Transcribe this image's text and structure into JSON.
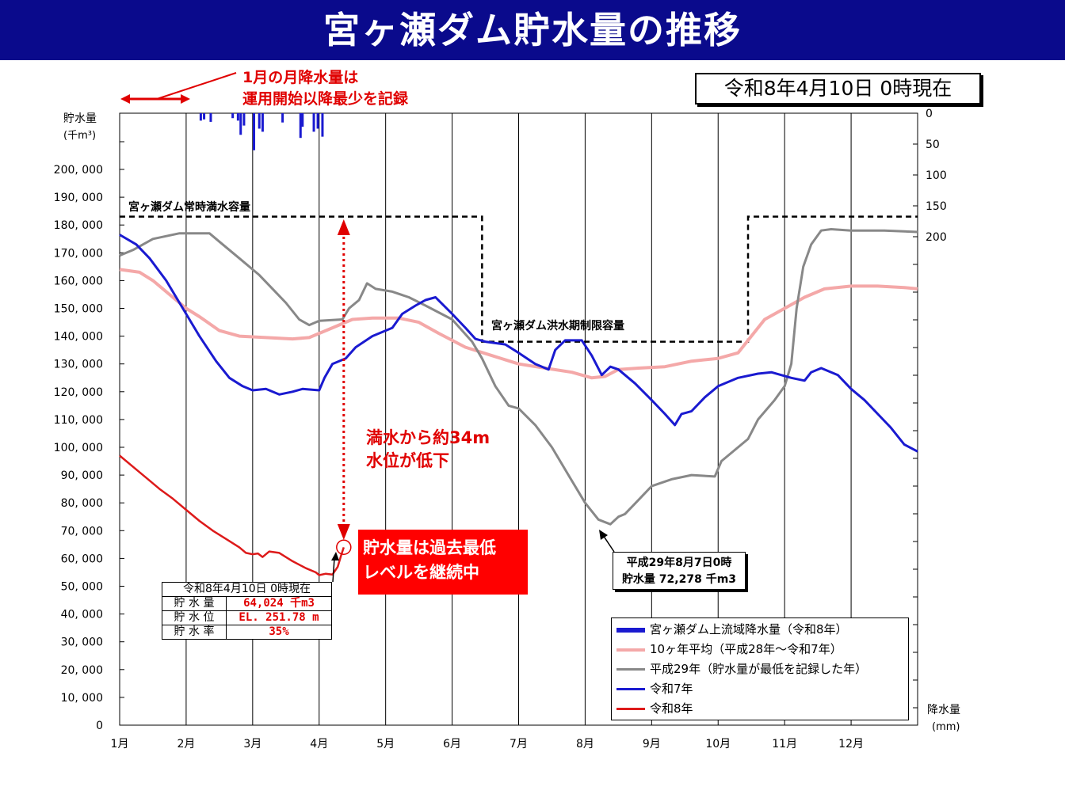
{
  "title": "宮ヶ瀬ダム貯水量の推移",
  "status_time": "令和8年4月10日 0時現在",
  "january_note": {
    "line1": "1月の月降水量は",
    "line2": "運用開始以降最少を記録"
  },
  "drop_note": {
    "line1": "満水から約34m",
    "line2": "水位が低下"
  },
  "record_note": {
    "line1": "貯水量は過去最低",
    "line2": "レベルを継続中"
  },
  "min_note": {
    "line1": "平成29年8月7日0時",
    "line2": "貯水量 72,278 千m3"
  },
  "info_table": {
    "header": "令和8年4月10日 0時現在",
    "rows": [
      {
        "label": "貯 水 量",
        "value": "64,024 千m3"
      },
      {
        "label": "貯 水 位",
        "value": "EL. 251.78 m"
      },
      {
        "label": "貯 水 率",
        "value": "35%"
      }
    ]
  },
  "colors": {
    "title_bg": "#0a0a8c",
    "rain": "#1a1ad0",
    "avg": "#f4a8a8",
    "h29": "#888888",
    "r7": "#1a1ad0",
    "r8": "#dd1a1a",
    "accent_red": "#e00000"
  },
  "chart_data": {
    "type": "line",
    "title": "宮ヶ瀬ダム貯水量の推移",
    "ylabel": "貯水量 (千m³)",
    "y2label": "降水量 (mm)",
    "ylim": [
      0,
      220000
    ],
    "y2lim": [
      0,
      200
    ],
    "yticks": [
      0,
      10000,
      20000,
      30000,
      40000,
      50000,
      60000,
      70000,
      80000,
      90000,
      100000,
      110000,
      120000,
      130000,
      140000,
      150000,
      160000,
      170000,
      180000,
      190000,
      200000
    ],
    "y2ticks": [
      0,
      50,
      100,
      150,
      200
    ],
    "x_tick_labels": [
      "1月",
      "2月",
      "3月",
      "4月",
      "5月",
      "6月",
      "7月",
      "8月",
      "9月",
      "10月",
      "11月",
      "12月"
    ],
    "grid": true,
    "legend_position": "bottom-right",
    "reference_lines": [
      {
        "name": "宮ヶ瀬ダム常時満水容量",
        "value": 183000
      },
      {
        "name": "宮ヶ瀬ダム洪水期制限容量",
        "value": 138000
      }
    ],
    "capacity_steps": [
      [
        0,
        183000
      ],
      [
        5.45,
        183000
      ],
      [
        5.45,
        138000
      ],
      [
        9.45,
        138000
      ],
      [
        9.45,
        183000
      ],
      [
        12,
        183000
      ]
    ],
    "series": [
      {
        "name": "宮ヶ瀬ダム上流域降水量（令和8年）",
        "kind": "rain",
        "points": [
          [
            1.22,
            12
          ],
          [
            1.27,
            10
          ],
          [
            1.37,
            14
          ],
          [
            1.7,
            8
          ],
          [
            1.78,
            12
          ],
          [
            1.82,
            35
          ],
          [
            1.87,
            20
          ],
          [
            2.02,
            60
          ],
          [
            2.1,
            25
          ],
          [
            2.15,
            30
          ],
          [
            2.45,
            15
          ],
          [
            2.72,
            40
          ],
          [
            2.75,
            22
          ],
          [
            2.92,
            30
          ],
          [
            2.98,
            25
          ],
          [
            3.05,
            38
          ]
        ]
      },
      {
        "name": "10ヶ年平均（平成28年～令和7年）",
        "kind": "line",
        "points": [
          [
            0,
            164000
          ],
          [
            0.3,
            163000
          ],
          [
            0.5,
            160000
          ],
          [
            0.8,
            154000
          ],
          [
            1.0,
            150000
          ],
          [
            1.2,
            147000
          ],
          [
            1.5,
            142000
          ],
          [
            1.8,
            140000
          ],
          [
            2.2,
            139500
          ],
          [
            2.6,
            139000
          ],
          [
            2.85,
            139500
          ],
          [
            3.2,
            143000
          ],
          [
            3.5,
            146000
          ],
          [
            3.8,
            146500
          ],
          [
            4.2,
            146500
          ],
          [
            4.5,
            145000
          ],
          [
            4.8,
            141000
          ],
          [
            5.2,
            136000
          ],
          [
            5.6,
            133000
          ],
          [
            6.0,
            130000
          ],
          [
            6.4,
            128500
          ],
          [
            6.8,
            127000
          ],
          [
            7.1,
            125000
          ],
          [
            7.3,
            125500
          ],
          [
            7.5,
            128000
          ],
          [
            7.8,
            128500
          ],
          [
            8.2,
            129000
          ],
          [
            8.6,
            131000
          ],
          [
            9.0,
            132000
          ],
          [
            9.3,
            134000
          ],
          [
            9.5,
            140000
          ],
          [
            9.7,
            146000
          ],
          [
            10.0,
            150000
          ],
          [
            10.3,
            154000
          ],
          [
            10.6,
            157000
          ],
          [
            11.0,
            158000
          ],
          [
            11.4,
            158000
          ],
          [
            11.8,
            157500
          ],
          [
            12.0,
            157000
          ]
        ]
      },
      {
        "name": "平成29年（貯水量が最低を記録した年）",
        "kind": "line",
        "points": [
          [
            0,
            169000
          ],
          [
            0.2,
            171000
          ],
          [
            0.5,
            175000
          ],
          [
            0.9,
            177000
          ],
          [
            1.35,
            177000
          ],
          [
            1.5,
            174000
          ],
          [
            1.8,
            168000
          ],
          [
            2.1,
            162000
          ],
          [
            2.3,
            157000
          ],
          [
            2.5,
            152000
          ],
          [
            2.7,
            146000
          ],
          [
            2.85,
            144000
          ],
          [
            3.0,
            145500
          ],
          [
            3.35,
            146000
          ],
          [
            3.45,
            150000
          ],
          [
            3.6,
            153000
          ],
          [
            3.72,
            159000
          ],
          [
            3.85,
            157000
          ],
          [
            4.1,
            156000
          ],
          [
            4.35,
            154000
          ],
          [
            4.6,
            151000
          ],
          [
            5.0,
            146000
          ],
          [
            5.3,
            138000
          ],
          [
            5.45,
            132000
          ],
          [
            5.65,
            122000
          ],
          [
            5.85,
            115000
          ],
          [
            6.0,
            114000
          ],
          [
            6.25,
            108000
          ],
          [
            6.5,
            100000
          ],
          [
            6.75,
            90000
          ],
          [
            7.0,
            80000
          ],
          [
            7.2,
            74000
          ],
          [
            7.38,
            72300
          ],
          [
            7.5,
            75000
          ],
          [
            7.6,
            76000
          ],
          [
            7.8,
            81000
          ],
          [
            8.0,
            86000
          ],
          [
            8.3,
            88500
          ],
          [
            8.6,
            90000
          ],
          [
            8.95,
            89500
          ],
          [
            9.05,
            95000
          ],
          [
            9.2,
            98000
          ],
          [
            9.45,
            103000
          ],
          [
            9.6,
            110000
          ],
          [
            9.85,
            117000
          ],
          [
            10.0,
            122000
          ],
          [
            10.1,
            130000
          ],
          [
            10.18,
            150000
          ],
          [
            10.28,
            165000
          ],
          [
            10.4,
            173000
          ],
          [
            10.55,
            178000
          ],
          [
            10.7,
            178500
          ],
          [
            11.0,
            178000
          ],
          [
            11.5,
            178000
          ],
          [
            12.0,
            177500
          ]
        ]
      },
      {
        "name": "令和7年",
        "kind": "line",
        "points": [
          [
            0,
            176500
          ],
          [
            0.25,
            173000
          ],
          [
            0.45,
            168000
          ],
          [
            0.7,
            160000
          ],
          [
            0.95,
            150000
          ],
          [
            1.2,
            140000
          ],
          [
            1.45,
            131000
          ],
          [
            1.65,
            125000
          ],
          [
            1.85,
            122000
          ],
          [
            2.0,
            120500
          ],
          [
            2.2,
            121000
          ],
          [
            2.4,
            119000
          ],
          [
            2.6,
            120000
          ],
          [
            2.75,
            121000
          ],
          [
            3.0,
            120500
          ],
          [
            3.08,
            125000
          ],
          [
            3.2,
            130000
          ],
          [
            3.4,
            132000
          ],
          [
            3.55,
            136000
          ],
          [
            3.8,
            140000
          ],
          [
            4.0,
            142000
          ],
          [
            4.1,
            143000
          ],
          [
            4.25,
            148000
          ],
          [
            4.45,
            151000
          ],
          [
            4.6,
            153000
          ],
          [
            4.75,
            154000
          ],
          [
            5.0,
            148000
          ],
          [
            5.2,
            143000
          ],
          [
            5.35,
            139000
          ],
          [
            5.5,
            138000
          ],
          [
            5.8,
            137000
          ],
          [
            6.0,
            134000
          ],
          [
            6.25,
            130000
          ],
          [
            6.45,
            128000
          ],
          [
            6.55,
            135000
          ],
          [
            6.7,
            138500
          ],
          [
            6.95,
            138500
          ],
          [
            7.1,
            133000
          ],
          [
            7.25,
            126000
          ],
          [
            7.38,
            129000
          ],
          [
            7.5,
            128000
          ],
          [
            7.75,
            123000
          ],
          [
            8.0,
            117000
          ],
          [
            8.2,
            112000
          ],
          [
            8.35,
            108000
          ],
          [
            8.45,
            112000
          ],
          [
            8.6,
            113000
          ],
          [
            8.8,
            118000
          ],
          [
            9.0,
            122000
          ],
          [
            9.3,
            125000
          ],
          [
            9.6,
            126500
          ],
          [
            9.8,
            127000
          ],
          [
            10.1,
            125000
          ],
          [
            10.3,
            124000
          ],
          [
            10.4,
            127000
          ],
          [
            10.55,
            128500
          ],
          [
            10.8,
            126000
          ],
          [
            11.0,
            121000
          ],
          [
            11.2,
            117000
          ],
          [
            11.4,
            112000
          ],
          [
            11.6,
            107000
          ],
          [
            11.8,
            101000
          ],
          [
            12.0,
            98500
          ]
        ]
      },
      {
        "name": "令和8年",
        "kind": "line",
        "points": [
          [
            0,
            97000
          ],
          [
            0.2,
            93000
          ],
          [
            0.4,
            89000
          ],
          [
            0.6,
            85000
          ],
          [
            0.8,
            81500
          ],
          [
            1.0,
            77500
          ],
          [
            1.2,
            73500
          ],
          [
            1.4,
            70000
          ],
          [
            1.6,
            67000
          ],
          [
            1.8,
            64000
          ],
          [
            1.9,
            62000
          ],
          [
            2.0,
            61500
          ],
          [
            2.08,
            61800
          ],
          [
            2.15,
            60500
          ],
          [
            2.25,
            62500
          ],
          [
            2.4,
            62000
          ],
          [
            2.6,
            59000
          ],
          [
            2.8,
            56500
          ],
          [
            2.95,
            55000
          ],
          [
            3.0,
            54000
          ],
          [
            3.1,
            54500
          ],
          [
            3.2,
            54200
          ],
          [
            3.28,
            57000
          ],
          [
            3.33,
            61000
          ],
          [
            3.37,
            64000
          ]
        ]
      }
    ],
    "annotation_points": [
      {
        "label": "令和8年4月10日",
        "x": 3.37,
        "y": 64024
      }
    ]
  }
}
